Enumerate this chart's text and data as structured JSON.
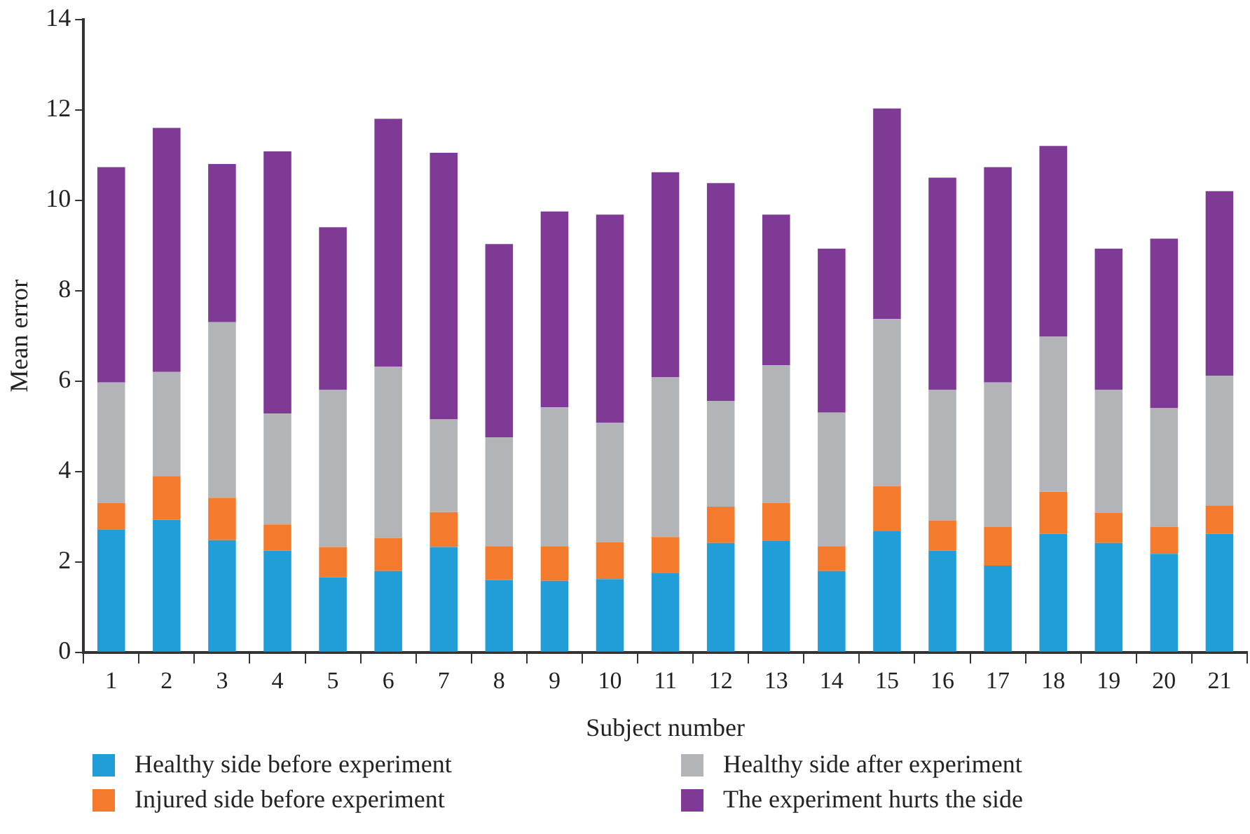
{
  "chart_data": {
    "type": "bar",
    "stacked": true,
    "xlabel": "Subject number",
    "ylabel": "Mean error",
    "categories": [
      "1",
      "2",
      "3",
      "4",
      "5",
      "6",
      "7",
      "8",
      "9",
      "10",
      "11",
      "12",
      "13",
      "14",
      "15",
      "16",
      "17",
      "18",
      "19",
      "20",
      "21"
    ],
    "series": [
      {
        "name": "Healthy side before experiment",
        "color": "#219ed8",
        "values": [
          2.72,
          2.93,
          2.48,
          2.25,
          1.66,
          1.8,
          2.33,
          1.6,
          1.58,
          1.62,
          1.75,
          2.42,
          2.46,
          1.8,
          2.68,
          2.25,
          1.92,
          2.62,
          2.42,
          2.18,
          2.62
        ]
      },
      {
        "name": "Injured side before experiment",
        "color": "#f47b2e",
        "values": [
          0.58,
          0.97,
          0.94,
          0.58,
          0.67,
          0.73,
          0.77,
          0.75,
          0.77,
          0.81,
          0.8,
          0.8,
          0.84,
          0.55,
          1.0,
          0.67,
          0.85,
          0.93,
          0.66,
          0.6,
          0.63
        ]
      },
      {
        "name": "Healthy side after experiment",
        "color": "#b3b4b8",
        "values": [
          2.67,
          2.3,
          3.88,
          2.45,
          3.47,
          3.79,
          2.05,
          2.4,
          3.07,
          2.65,
          3.53,
          2.34,
          3.05,
          2.95,
          3.69,
          2.88,
          3.2,
          3.43,
          2.72,
          2.62,
          2.87
        ]
      },
      {
        "name": "The experiment hurts the side",
        "color": "#7e3a94",
        "values": [
          4.76,
          5.4,
          3.5,
          5.8,
          3.6,
          5.48,
          5.9,
          4.28,
          4.33,
          4.6,
          4.54,
          4.82,
          3.33,
          3.63,
          4.66,
          4.7,
          4.76,
          4.22,
          3.13,
          3.75,
          4.08
        ]
      }
    ],
    "ylim": [
      0,
      14
    ],
    "yticks": [
      0,
      2,
      4,
      6,
      8,
      10,
      12,
      14
    ],
    "grid": false,
    "legend": "bottom"
  }
}
